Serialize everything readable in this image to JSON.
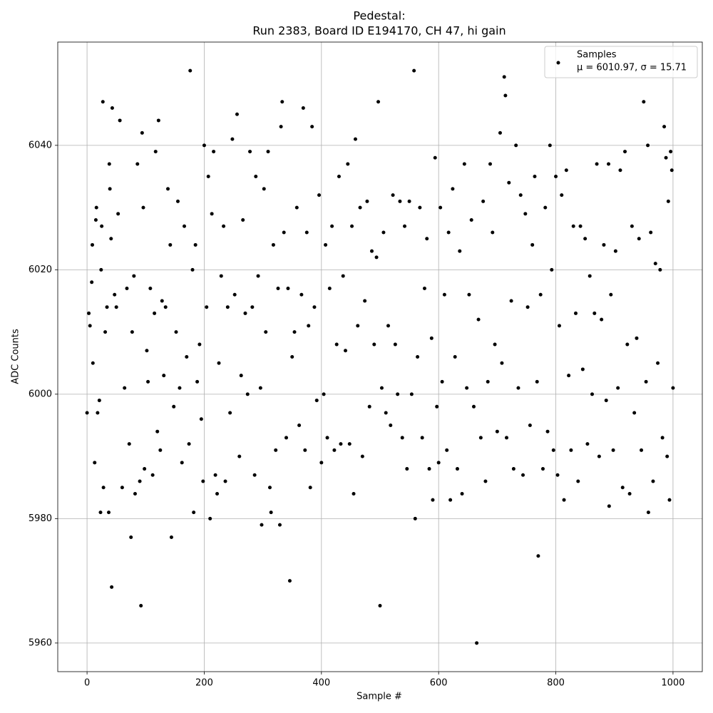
{
  "chart_data": {
    "type": "scatter",
    "title": "Pedestal:",
    "subtitle": "Run 2383, Board ID E194170, CH 47, hi gain",
    "x_label": "Sample #",
    "y_label": "ADC Counts",
    "xlim": [
      -50,
      1050
    ],
    "ylim": [
      5955.4,
      6056.6
    ],
    "xticks": [
      0,
      200,
      400,
      600,
      800,
      1000
    ],
    "yticks": [
      5960,
      5980,
      6000,
      6020,
      6040
    ],
    "grid": true,
    "legend_position": "upper right",
    "legend_note": "μ = 6010.97, σ = 15.71",
    "series": [
      {
        "name": "Samples",
        "color": "#000000",
        "x": [
          0,
          3,
          5,
          8,
          9,
          10,
          13,
          15,
          16,
          18,
          21,
          23,
          24,
          25,
          27,
          28,
          31,
          34,
          37,
          38,
          39,
          41,
          42,
          43,
          47,
          50,
          53,
          56,
          60,
          64,
          68,
          72,
          75,
          77,
          80,
          82,
          86,
          90,
          92,
          94,
          96,
          98,
          102,
          104,
          108,
          112,
          115,
          117,
          120,
          122,
          125,
          128,
          131,
          134,
          138,
          142,
          144,
          148,
          152,
          155,
          158,
          162,
          166,
          170,
          174,
          176,
          180,
          182,
          185,
          188,
          192,
          195,
          198,
          200,
          204,
          207,
          210,
          213,
          216,
          219,
          222,
          225,
          229,
          233,
          236,
          240,
          244,
          248,
          252,
          256,
          260,
          263,
          266,
          270,
          274,
          278,
          282,
          286,
          288,
          292,
          296,
          298,
          302,
          305,
          309,
          312,
          314,
          318,
          322,
          326,
          329,
          331,
          333,
          336,
          340,
          343,
          346,
          350,
          354,
          358,
          362,
          366,
          369,
          372,
          375,
          378,
          381,
          384,
          388,
          392,
          396,
          400,
          404,
          407,
          410,
          414,
          418,
          422,
          426,
          430,
          433,
          437,
          441,
          445,
          448,
          452,
          455,
          458,
          462,
          466,
          470,
          474,
          478,
          482,
          486,
          490,
          494,
          497,
          500,
          503,
          506,
          510,
          514,
          518,
          522,
          526,
          530,
          534,
          538,
          542,
          546,
          550,
          554,
          558,
          560,
          564,
          568,
          572,
          576,
          580,
          584,
          588,
          590,
          594,
          597,
          600,
          603,
          606,
          610,
          614,
          617,
          620,
          624,
          628,
          632,
          636,
          640,
          644,
          648,
          652,
          656,
          660,
          665,
          668,
          672,
          676,
          680,
          684,
          688,
          692,
          696,
          700,
          705,
          708,
          712,
          714,
          716,
          720,
          724,
          728,
          732,
          736,
          740,
          744,
          748,
          752,
          756,
          760,
          764,
          768,
          770,
          774,
          778,
          782,
          786,
          790,
          793,
          796,
          800,
          803,
          806,
          810,
          814,
          818,
          822,
          826,
          830,
          834,
          838,
          842,
          846,
          850,
          854,
          858,
          862,
          866,
          870,
          874,
          878,
          882,
          886,
          890,
          891,
          894,
          898,
          902,
          906,
          910,
          914,
          918,
          922,
          926,
          930,
          934,
          938,
          942,
          946,
          950,
          954,
          957,
          958,
          962,
          966,
          970,
          974,
          978,
          982,
          985,
          988,
          990,
          992,
          994,
          996,
          998,
          1000
        ],
        "values": [
          5997,
          6013,
          6011,
          6018,
          6024,
          6005,
          5989,
          6028,
          6030,
          5997,
          5999,
          5981,
          6020,
          6027,
          6047,
          5985,
          6010,
          6014,
          5981,
          6037,
          6033,
          6025,
          5969,
          6046,
          6016,
          6014,
          6029,
          6044,
          5985,
          6001,
          6017,
          5992,
          5977,
          6010,
          6019,
          5984,
          6037,
          5986,
          5966,
          6042,
          6030,
          5988,
          6007,
          6002,
          6017,
          5987,
          6013,
          6039,
          5994,
          6044,
          5991,
          6015,
          6003,
          6014,
          6033,
          6024,
          5977,
          5998,
          6010,
          6031,
          6001,
          5989,
          6027,
          6006,
          5992,
          6052,
          6020,
          5981,
          6024,
          6002,
          6008,
          5996,
          5986,
          6040,
          6014,
          6035,
          5980,
          6029,
          6039,
          5987,
          5984,
          6005,
          6019,
          6027,
          5986,
          6014,
          5997,
          6041,
          6016,
          6045,
          5990,
          6003,
          6028,
          6013,
          6000,
          6039,
          6014,
          5987,
          6035,
          6019,
          6001,
          5979,
          6033,
          6010,
          6039,
          5985,
          5981,
          6024,
          5991,
          6017,
          5979,
          6043,
          6047,
          6026,
          5993,
          6017,
          5970,
          6006,
          6010,
          6030,
          5995,
          6016,
          6046,
          5991,
          6026,
          6011,
          5985,
          6043,
          6014,
          5999,
          6032,
          5989,
          6000,
          6024,
          5993,
          6017,
          6027,
          5991,
          6008,
          6035,
          5992,
          6019,
          6007,
          6037,
          5992,
          6027,
          5984,
          6041,
          6011,
          6030,
          5990,
          6015,
          6031,
          5998,
          6023,
          6008,
          6022,
          6047,
          5966,
          6001,
          6026,
          5997,
          6011,
          5995,
          6032,
          6008,
          6000,
          6031,
          5993,
          6027,
          5988,
          6031,
          6000,
          6052,
          5980,
          6006,
          6030,
          5993,
          6017,
          6025,
          5988,
          6009,
          5983,
          6038,
          5998,
          5989,
          6030,
          6002,
          6016,
          5991,
          6026,
          5983,
          6033,
          6006,
          5988,
          6023,
          5984,
          6037,
          6001,
          6016,
          6028,
          5998,
          5960,
          6012,
          5993,
          6031,
          5986,
          6002,
          6037,
          6026,
          6008,
          5994,
          6042,
          6005,
          6051,
          6048,
          5993,
          6034,
          6015,
          5988,
          6040,
          6001,
          6032,
          5987,
          6029,
          6014,
          5995,
          6024,
          6035,
          6002,
          5974,
          6016,
          5988,
          6030,
          5994,
          6040,
          6020,
          5991,
          6035,
          5987,
          6011,
          6032,
          5983,
          6036,
          6003,
          5991,
          6027,
          6013,
          5986,
          6027,
          6004,
          6025,
          5992,
          6019,
          6000,
          6013,
          6037,
          5990,
          6012,
          6024,
          5999,
          6037,
          5982,
          6016,
          5991,
          6023,
          6001,
          6036,
          5985,
          6039,
          6008,
          5984,
          6027,
          5997,
          6009,
          6025,
          5991,
          6047,
          6002,
          6040,
          5981,
          6026,
          5986,
          6021,
          6005,
          6020,
          5993,
          6043,
          6038,
          5990,
          6031,
          5983,
          6039,
          6036,
          6001
        ]
      }
    ]
  }
}
